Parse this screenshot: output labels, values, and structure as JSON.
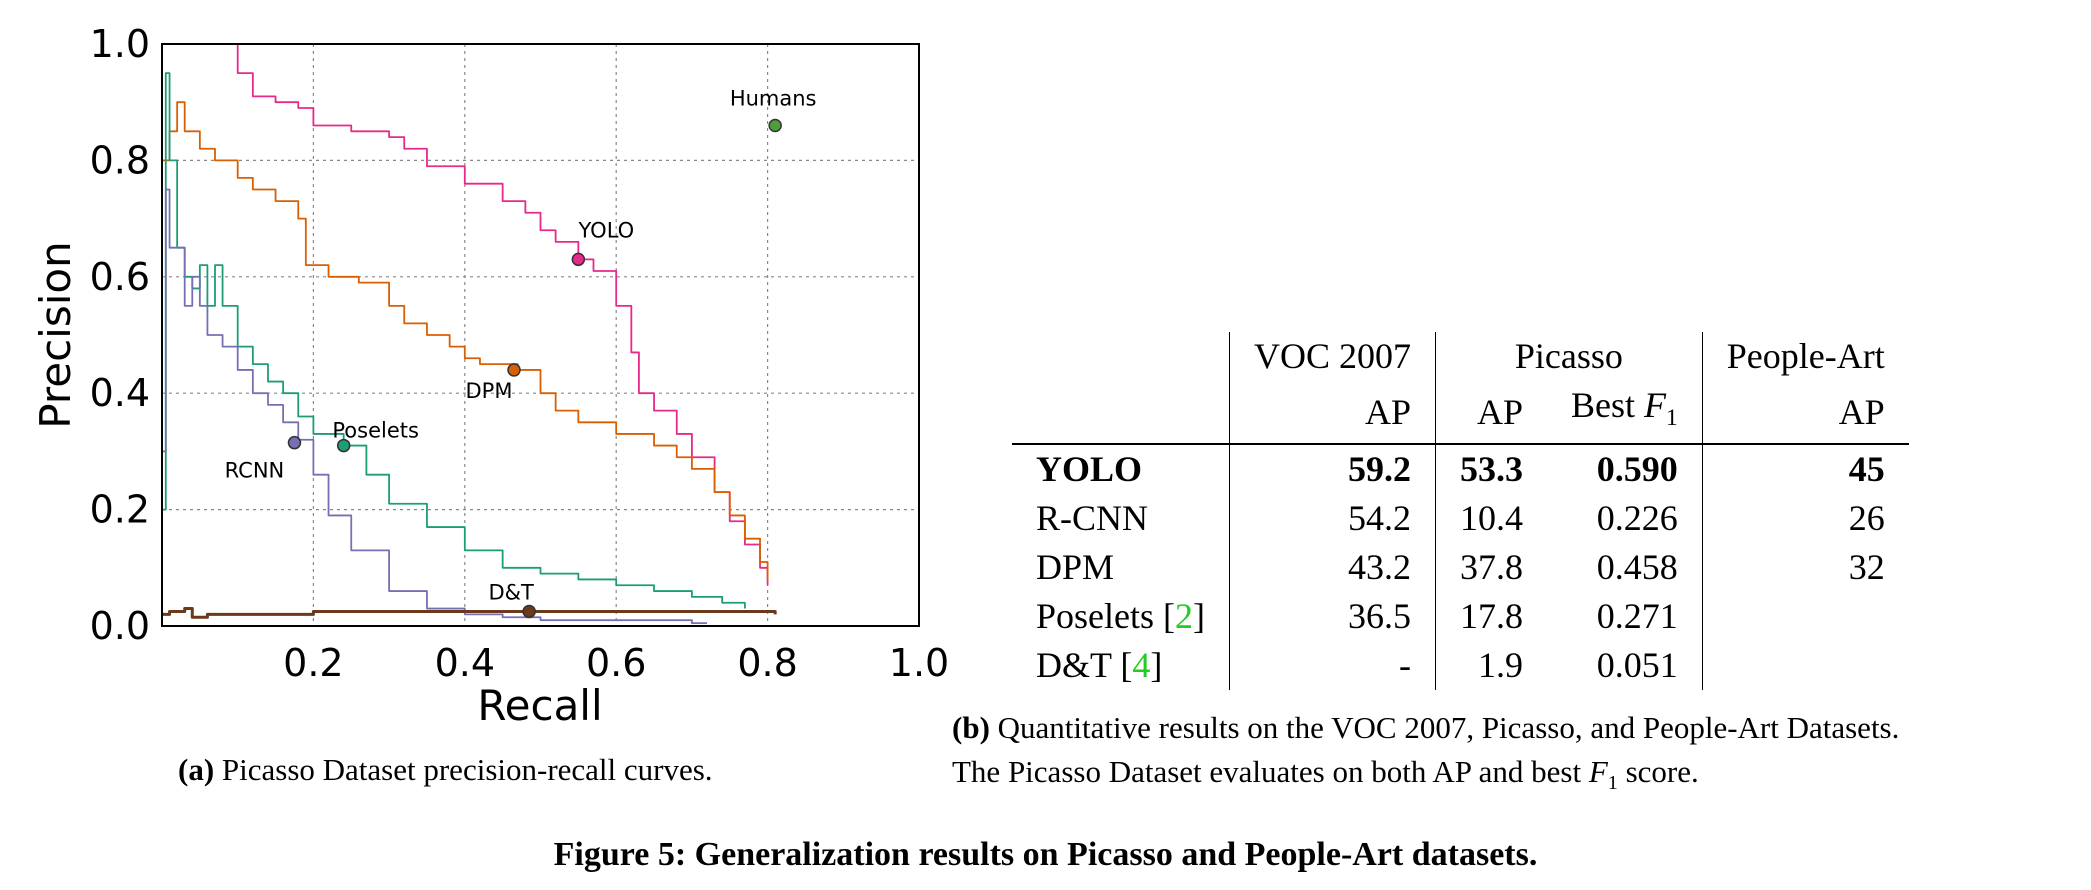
{
  "chart_data": {
    "type": "line",
    "title": "",
    "xlabel": "Recall",
    "ylabel": "Precision",
    "xlim": [
      0.0,
      1.0
    ],
    "ylim": [
      0.0,
      1.0
    ],
    "xticks": [
      "0.2",
      "0.4",
      "0.6",
      "0.8",
      "1.0"
    ],
    "yticks": [
      "0.0",
      "0.2",
      "0.4",
      "0.6",
      "0.8",
      "1.0"
    ],
    "grid": true,
    "series": [
      {
        "name": "YOLO",
        "color": "#e7298a",
        "x": [
          0.0,
          0.02,
          0.05,
          0.09,
          0.1,
          0.12,
          0.15,
          0.18,
          0.2,
          0.25,
          0.3,
          0.32,
          0.35,
          0.4,
          0.45,
          0.48,
          0.5,
          0.52,
          0.55,
          0.57,
          0.6,
          0.62,
          0.63,
          0.65,
          0.68,
          0.7,
          0.73,
          0.75,
          0.77,
          0.79,
          0.8
        ],
        "y": [
          1.0,
          1.0,
          1.0,
          1.0,
          0.95,
          0.91,
          0.9,
          0.89,
          0.86,
          0.85,
          0.84,
          0.82,
          0.79,
          0.76,
          0.73,
          0.71,
          0.68,
          0.66,
          0.63,
          0.61,
          0.55,
          0.47,
          0.4,
          0.37,
          0.33,
          0.29,
          0.23,
          0.18,
          0.14,
          0.1,
          0.07
        ]
      },
      {
        "name": "DPM",
        "color": "#d95f02",
        "x": [
          0.0,
          0.01,
          0.02,
          0.03,
          0.05,
          0.07,
          0.1,
          0.12,
          0.15,
          0.18,
          0.19,
          0.22,
          0.24,
          0.26,
          0.3,
          0.32,
          0.35,
          0.38,
          0.4,
          0.42,
          0.44,
          0.47,
          0.5,
          0.52,
          0.55,
          0.6,
          0.65,
          0.68,
          0.7,
          0.73,
          0.75,
          0.77,
          0.79,
          0.8
        ],
        "y": [
          0.8,
          0.85,
          0.9,
          0.85,
          0.82,
          0.8,
          0.77,
          0.75,
          0.73,
          0.7,
          0.62,
          0.6,
          0.6,
          0.59,
          0.55,
          0.52,
          0.5,
          0.48,
          0.46,
          0.45,
          0.45,
          0.44,
          0.4,
          0.37,
          0.35,
          0.33,
          0.31,
          0.29,
          0.27,
          0.23,
          0.19,
          0.15,
          0.11,
          0.08
        ]
      },
      {
        "name": "Poselets",
        "color": "#1b9e77",
        "x": [
          0.0,
          0.005,
          0.01,
          0.02,
          0.03,
          0.04,
          0.05,
          0.06,
          0.07,
          0.08,
          0.1,
          0.12,
          0.14,
          0.16,
          0.18,
          0.2,
          0.24,
          0.27,
          0.3,
          0.35,
          0.4,
          0.45,
          0.5,
          0.55,
          0.6,
          0.65,
          0.7,
          0.74,
          0.77
        ],
        "y": [
          0.2,
          0.95,
          0.8,
          0.65,
          0.6,
          0.58,
          0.62,
          0.55,
          0.62,
          0.55,
          0.48,
          0.45,
          0.42,
          0.4,
          0.36,
          0.33,
          0.31,
          0.26,
          0.21,
          0.17,
          0.13,
          0.1,
          0.09,
          0.08,
          0.07,
          0.06,
          0.05,
          0.04,
          0.03
        ]
      },
      {
        "name": "RCNN",
        "color": "#7570b3",
        "x": [
          0.0,
          0.005,
          0.01,
          0.02,
          0.03,
          0.04,
          0.05,
          0.06,
          0.08,
          0.1,
          0.12,
          0.14,
          0.16,
          0.18,
          0.2,
          0.22,
          0.25,
          0.3,
          0.35,
          0.4,
          0.45,
          0.5,
          0.55,
          0.6,
          0.65,
          0.7,
          0.72
        ],
        "y": [
          0.3,
          0.75,
          0.65,
          0.65,
          0.55,
          0.6,
          0.55,
          0.5,
          0.48,
          0.44,
          0.4,
          0.38,
          0.35,
          0.32,
          0.26,
          0.19,
          0.13,
          0.06,
          0.03,
          0.02,
          0.015,
          0.01,
          0.01,
          0.01,
          0.01,
          0.005,
          0.005
        ]
      },
      {
        "name": "D&T",
        "color": "#6b3a1b",
        "x": [
          0.0,
          0.01,
          0.02,
          0.03,
          0.04,
          0.06,
          0.1,
          0.2,
          0.3,
          0.4,
          0.5,
          0.6,
          0.7,
          0.81
        ],
        "y": [
          0.02,
          0.025,
          0.025,
          0.03,
          0.015,
          0.02,
          0.02,
          0.025,
          0.025,
          0.025,
          0.025,
          0.025,
          0.025,
          0.02
        ]
      }
    ],
    "points": [
      {
        "name": "Humans",
        "x": 0.81,
        "y": 0.86,
        "color": "#4d9e3c",
        "label": "Humans"
      },
      {
        "name": "YOLO",
        "x": 0.55,
        "y": 0.63,
        "color": "#e7298a",
        "label": "YOLO"
      },
      {
        "name": "DPM",
        "x": 0.465,
        "y": 0.44,
        "color": "#d95f02",
        "label": "DPM"
      },
      {
        "name": "Poselets",
        "x": 0.24,
        "y": 0.31,
        "color": "#1b9e77",
        "label": "Poselets"
      },
      {
        "name": "RCNN",
        "x": 0.175,
        "y": 0.315,
        "color": "#7570b3",
        "label": "RCNN"
      },
      {
        "name": "D&T",
        "x": 0.485,
        "y": 0.025,
        "color": "#6b3a1b",
        "label": "D&T"
      }
    ]
  },
  "caption_a": {
    "label": "(a)",
    "text": " Picasso Dataset precision-recall curves."
  },
  "table": {
    "header1": {
      "voc": "VOC 2007",
      "picasso": "Picasso",
      "people": "People-Art"
    },
    "header2": {
      "voc_ap": "AP",
      "picasso_ap": "AP",
      "best": "Best ",
      "f": "F",
      "sub": "1",
      "people_ap": "AP"
    },
    "rows": [
      {
        "method": "YOLO",
        "cite": "",
        "voc_ap": "59.2",
        "picasso_ap": "53.3",
        "f1": "0.590",
        "people_ap": "45"
      },
      {
        "method": "R-CNN",
        "cite": "",
        "voc_ap": "54.2",
        "picasso_ap": "10.4",
        "f1": "0.226",
        "people_ap": "26"
      },
      {
        "method": "DPM",
        "cite": "",
        "voc_ap": "43.2",
        "picasso_ap": "37.8",
        "f1": "0.458",
        "people_ap": "32"
      },
      {
        "method": "Poselets ",
        "cite": "2",
        "voc_ap": "36.5",
        "picasso_ap": "17.8",
        "f1": "0.271",
        "people_ap": ""
      },
      {
        "method": "D&T ",
        "cite": "4",
        "voc_ap": "-",
        "picasso_ap": "1.9",
        "f1": "0.051",
        "people_ap": ""
      }
    ]
  },
  "caption_b": {
    "label": "(b)",
    "line1": " Quantitative results on the VOC 2007, Picasso, and People-Art Datasets.",
    "line2a": "The Picasso Dataset evaluates on both AP and best ",
    "f": "F",
    "sub": "1",
    "line2b": " score."
  },
  "figure_caption": "Figure 5: Generalization results on Picasso and People-Art datasets."
}
